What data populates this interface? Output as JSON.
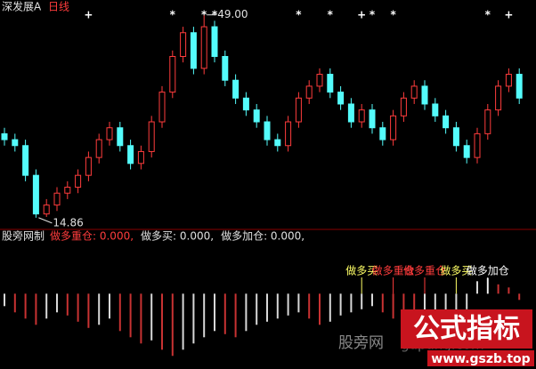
{
  "chart_data": {
    "type": "candlestick",
    "title": "深发展A",
    "period": "日线",
    "high_label": "49.00",
    "low_label": "14.86",
    "ylim": [
      12.9,
      51.5
    ],
    "up_color": "#ff3c3c",
    "down_color": "#54fcfc",
    "categories": [
      null,
      null,
      null,
      null,
      null,
      null,
      null,
      null,
      null,
      null,
      null,
      null,
      null,
      null,
      null,
      null,
      null,
      null,
      null,
      null,
      null,
      null,
      null,
      null,
      null,
      null,
      null,
      null,
      null,
      null,
      null,
      null,
      null,
      null,
      null,
      null,
      null,
      null,
      null,
      null,
      null,
      null,
      null,
      null,
      null,
      null,
      null,
      null,
      null,
      null
    ],
    "open": [
      29,
      28,
      27,
      22,
      15.5,
      17,
      19,
      20,
      22,
      25,
      28,
      30,
      27,
      24,
      26,
      31,
      36,
      42,
      46,
      40,
      47,
      42,
      38,
      35,
      33,
      31,
      28,
      27,
      31,
      35,
      37,
      39,
      36,
      34,
      31,
      33,
      30,
      28,
      32,
      35,
      37,
      34,
      32,
      30,
      27,
      25,
      29,
      33,
      37,
      39
    ],
    "close": [
      28,
      27,
      22,
      15.5,
      17,
      19,
      20,
      22,
      25,
      28,
      30,
      27,
      24,
      26,
      31,
      36,
      42,
      46,
      40,
      47,
      42,
      38,
      35,
      33,
      31,
      28,
      27,
      31,
      35,
      37,
      39,
      36,
      34,
      31,
      33,
      30,
      28,
      32,
      35,
      37,
      34,
      32,
      30,
      27,
      25,
      29,
      33,
      37,
      39,
      35
    ],
    "high": [
      30,
      29,
      28,
      23,
      18,
      20,
      21,
      23,
      26,
      29,
      31,
      31,
      28,
      27,
      32,
      37,
      43,
      47,
      47,
      49,
      48,
      43,
      39,
      36,
      34,
      32,
      29,
      32,
      36,
      38,
      40,
      40,
      37,
      35,
      34,
      34,
      31,
      33,
      36,
      38,
      38,
      35,
      33,
      31,
      28,
      30,
      34,
      38,
      40,
      40
    ],
    "low": [
      27,
      26,
      21,
      14.86,
      15,
      16,
      18,
      19,
      21,
      24,
      27,
      26,
      23,
      23,
      25,
      30,
      35,
      41,
      39,
      39,
      41,
      37,
      34,
      32,
      30,
      27,
      26,
      26,
      30,
      34,
      36,
      35,
      33,
      30,
      30,
      29,
      27,
      27,
      31,
      34,
      33,
      31,
      29,
      26,
      24,
      24,
      28,
      32,
      36,
      34
    ],
    "markers": [
      {
        "index": 8,
        "symbol": "+"
      },
      {
        "index": 16,
        "symbol": "*"
      },
      {
        "index": 19,
        "symbol": "*"
      },
      {
        "index": 20,
        "symbol": "*"
      },
      {
        "index": 28,
        "symbol": "*"
      },
      {
        "index": 31,
        "symbol": "*"
      },
      {
        "index": 34,
        "symbol": "+"
      },
      {
        "index": 35,
        "symbol": "*"
      },
      {
        "index": 37,
        "symbol": "*"
      },
      {
        "index": 46,
        "symbol": "*"
      },
      {
        "index": 48,
        "symbol": "+"
      }
    ],
    "indicator": {
      "name": "股旁网制",
      "legend": [
        {
          "text": "做多重仓: 0.000,",
          "color": "#ff3c3c"
        },
        {
          "text": "做多买: 0.000,",
          "color": "#e0e0e0"
        },
        {
          "text": "做多加仓: 0.000,",
          "color": "#e0e0e0"
        }
      ],
      "ylim": [
        -1.21,
        0.79
      ],
      "values": [
        -0.2,
        -0.3,
        -0.4,
        -0.5,
        -0.4,
        -0.3,
        -0.35,
        -0.45,
        -0.55,
        -0.5,
        -0.4,
        -0.6,
        -0.7,
        -0.8,
        -0.75,
        -0.9,
        -1.0,
        -0.9,
        -0.8,
        -0.7,
        -0.6,
        -0.65,
        -0.7,
        -0.6,
        -0.5,
        -0.45,
        -0.4,
        -0.35,
        -0.3,
        -0.4,
        -0.5,
        -0.45,
        -0.35,
        -0.3,
        -0.25,
        -0.2,
        -0.3,
        -0.4,
        -0.5,
        -0.6,
        -0.55,
        -0.45,
        -0.35,
        -0.3,
        -0.25,
        0.2,
        0.25,
        0.15,
        0.1,
        -0.1
      ],
      "signals": [
        {
          "index": 34,
          "label": "做多买",
          "color": "#ffff66"
        },
        {
          "index": 37,
          "label": "做多重仓",
          "color": "#ff3c3c"
        },
        {
          "index": 40,
          "label": "做多重仓",
          "color": "#ff3c3c"
        },
        {
          "index": 43,
          "label": "做多买",
          "color": "#ffff66"
        },
        {
          "index": 46,
          "label": "做多加仓",
          "color": "#ffffff"
        }
      ]
    },
    "watermarks": {
      "site": "股旁网",
      "domain": "gupang.com",
      "badge": "公式指标",
      "url": "www.gszb.top"
    }
  }
}
